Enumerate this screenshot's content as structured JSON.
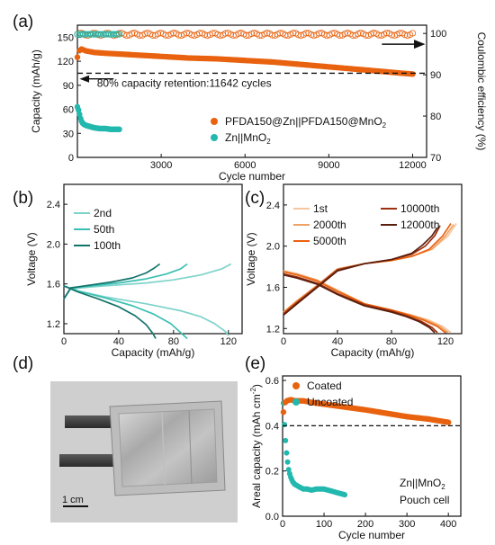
{
  "colors": {
    "orange": "#e8620f",
    "teal": "#22b8ae",
    "axis": "#111111",
    "photo_bg": "#cfcfcf"
  },
  "panels": {
    "a": "(a)",
    "b": "(b)",
    "c": "(c)",
    "d": "(d)",
    "e": "(e)"
  },
  "photo": {
    "scale_label": "1 cm"
  },
  "chart_data": [
    {
      "id": "a",
      "type": "scatter",
      "xlabel": "Cycle number",
      "ylabel": "Capacity (mAh/g)",
      "ylabel_right": "Coulombic efficiency (%)",
      "xlim": [
        0,
        12500
      ],
      "ylim": [
        0,
        165
      ],
      "ylim_right": [
        70,
        102
      ],
      "xticks": [
        3000,
        6000,
        9000,
        12000
      ],
      "yticks": [
        0,
        30,
        60,
        90,
        120,
        150
      ],
      "yticks_right": [
        70,
        80,
        90,
        100
      ],
      "annotation": "80% capacity retention:11642 cycles",
      "reference_line_y": 105,
      "legend": "right",
      "series": [
        {
          "name": "PFDA150@Zn||PFDA150@MnO",
          "name_sub": "2",
          "color": "#e8620f",
          "axis": "left",
          "x": [
            0,
            100,
            300,
            600,
            1000,
            2000,
            3000,
            4000,
            5000,
            6000,
            7000,
            8000,
            9000,
            10000,
            11000,
            11642,
            12000
          ],
          "y": [
            125,
            136,
            133,
            131,
            130,
            128,
            126,
            124,
            123,
            121,
            119,
            116,
            113,
            110,
            107,
            105,
            104
          ]
        },
        {
          "name": "Zn||MnO",
          "name_sub": "2",
          "color": "#22b8ae",
          "axis": "left",
          "x": [
            0,
            50,
            100,
            150,
            200,
            300,
            400,
            500,
            600,
            800,
            1000,
            1200,
            1500
          ],
          "y": [
            63,
            58,
            50,
            45,
            42,
            40,
            39,
            38,
            37,
            36,
            36,
            35,
            35
          ]
        },
        {
          "name": "PFDA150@Zn||PFDA150@MnO2 CE",
          "color": "#e8620f",
          "axis": "right",
          "x": [
            0,
            12000
          ],
          "y": [
            99.8,
            99.8
          ]
        },
        {
          "name": "Zn||MnO2 CE",
          "color": "#22b8ae",
          "axis": "right",
          "x": [
            0,
            1500
          ],
          "y": [
            99.8,
            99.8
          ]
        }
      ]
    },
    {
      "id": "b",
      "type": "line",
      "xlabel": "Capacity (mAh/g)",
      "ylabel": "Voltage (V)",
      "xlim": [
        0,
        130
      ],
      "ylim": [
        1.1,
        2.6
      ],
      "xticks": [
        0,
        40,
        80,
        120
      ],
      "yticks": [
        1.2,
        1.6,
        2.0,
        2.4
      ],
      "legend": "top-left",
      "series": [
        {
          "name": "2nd",
          "color": "#7dd3cb",
          "charge": {
            "x": [
              0,
              5,
              20,
              40,
              60,
              80,
              100,
              115,
              122
            ],
            "y": [
              1.45,
              1.55,
              1.57,
              1.59,
              1.61,
              1.64,
              1.69,
              1.75,
              1.8
            ]
          },
          "discharge": {
            "x": [
              0,
              10,
              30,
              60,
              85,
              100,
              110,
              118,
              120
            ],
            "y": [
              1.58,
              1.53,
              1.47,
              1.4,
              1.33,
              1.27,
              1.2,
              1.12,
              1.08
            ]
          }
        },
        {
          "name": "50th",
          "color": "#3bbfb2",
          "charge": {
            "x": [
              0,
              5,
              20,
              40,
              60,
              75,
              85,
              90
            ],
            "y": [
              1.45,
              1.56,
              1.58,
              1.61,
              1.65,
              1.7,
              1.75,
              1.8
            ]
          },
          "discharge": {
            "x": [
              0,
              10,
              30,
              50,
              65,
              78,
              86,
              90
            ],
            "y": [
              1.58,
              1.53,
              1.46,
              1.38,
              1.3,
              1.2,
              1.1,
              1.05
            ]
          }
        },
        {
          "name": "100th",
          "color": "#12736a",
          "charge": {
            "x": [
              0,
              5,
              20,
              35,
              50,
              60,
              66,
              70
            ],
            "y": [
              1.45,
              1.56,
              1.59,
              1.62,
              1.66,
              1.71,
              1.76,
              1.8
            ]
          },
          "discharge": {
            "x": [
              0,
              10,
              25,
              40,
              52,
              60,
              65,
              67
            ],
            "y": [
              1.58,
              1.52,
              1.45,
              1.37,
              1.28,
              1.19,
              1.1,
              1.05
            ]
          }
        }
      ]
    },
    {
      "id": "c",
      "type": "line",
      "xlabel": "Capacity (mAh/g)",
      "ylabel": "Voltage (V)",
      "xlim": [
        0,
        132
      ],
      "ylim": [
        1.15,
        2.6
      ],
      "xticks": [
        0,
        40,
        80,
        120
      ],
      "yticks": [
        1.2,
        1.6,
        2.0,
        2.4
      ],
      "legend": "top",
      "series": [
        {
          "name": "1st",
          "color": "#f6c79f",
          "charge": {
            "x": [
              0,
              10,
              25,
              40,
              60,
              80,
              95,
              110,
              122,
              128
            ],
            "y": [
              1.36,
              1.47,
              1.62,
              1.78,
              1.83,
              1.86,
              1.9,
              1.97,
              2.1,
              2.22
            ]
          },
          "discharge": {
            "x": [
              0,
              10,
              25,
              40,
              60,
              80,
              95,
              108,
              118,
              124
            ],
            "y": [
              1.76,
              1.73,
              1.67,
              1.57,
              1.44,
              1.38,
              1.33,
              1.28,
              1.22,
              1.16
            ]
          }
        },
        {
          "name": "2000th",
          "color": "#efa164",
          "charge": {
            "x": [
              0,
              10,
              25,
              40,
              60,
              80,
              95,
              110,
              120,
              126
            ],
            "y": [
              1.36,
              1.47,
              1.62,
              1.78,
              1.83,
              1.86,
              1.9,
              1.97,
              2.1,
              2.21
            ]
          },
          "discharge": {
            "x": [
              0,
              10,
              25,
              40,
              60,
              80,
              95,
              106,
              116,
              122
            ],
            "y": [
              1.76,
              1.73,
              1.67,
              1.57,
              1.44,
              1.38,
              1.33,
              1.28,
              1.22,
              1.16
            ]
          }
        },
        {
          "name": "5000th",
          "color": "#e8620f",
          "charge": {
            "x": [
              0,
              10,
              25,
              40,
              60,
              80,
              95,
              108,
              118,
              124
            ],
            "y": [
              1.35,
              1.46,
              1.61,
              1.77,
              1.83,
              1.86,
              1.9,
              1.97,
              2.1,
              2.22
            ]
          },
          "discharge": {
            "x": [
              0,
              10,
              25,
              40,
              60,
              80,
              93,
              104,
              114,
              120
            ],
            "y": [
              1.75,
              1.72,
              1.66,
              1.56,
              1.44,
              1.38,
              1.33,
              1.28,
              1.22,
              1.16
            ]
          }
        },
        {
          "name": "10000th",
          "color": "#9c2f0d",
          "charge": {
            "x": [
              0,
              10,
              25,
              40,
              60,
              80,
              95,
              105,
              112,
              116
            ],
            "y": [
              1.34,
              1.45,
              1.61,
              1.77,
              1.83,
              1.87,
              1.92,
              2.0,
              2.1,
              2.2
            ]
          },
          "discharge": {
            "x": [
              0,
              10,
              25,
              40,
              60,
              80,
              92,
              102,
              110,
              114
            ],
            "y": [
              1.73,
              1.7,
              1.64,
              1.54,
              1.43,
              1.37,
              1.32,
              1.27,
              1.21,
              1.16
            ]
          }
        },
        {
          "name": "12000th",
          "color": "#5a1e0c",
          "charge": {
            "x": [
              0,
              10,
              25,
              40,
              60,
              80,
              95,
              103,
              110,
              114
            ],
            "y": [
              1.33,
              1.44,
              1.6,
              1.76,
              1.83,
              1.87,
              1.93,
              2.01,
              2.1,
              2.18
            ]
          },
          "discharge": {
            "x": [
              0,
              10,
              25,
              40,
              60,
              80,
              90,
              100,
              108,
              112
            ],
            "y": [
              1.72,
              1.69,
              1.63,
              1.53,
              1.42,
              1.36,
              1.32,
              1.27,
              1.21,
              1.16
            ]
          }
        }
      ]
    },
    {
      "id": "e",
      "type": "scatter",
      "xlabel": "Cycle number",
      "ylabel": "Areal capacity (mAh cm",
      "ylabel_sup": "-2",
      "ylabel_close": ")",
      "xlim": [
        0,
        430
      ],
      "ylim": [
        0,
        0.62
      ],
      "xticks": [
        0,
        100,
        200,
        300,
        400
      ],
      "yticks": [
        0.0,
        0.2,
        0.4,
        0.6
      ],
      "reference_line_y": 0.4,
      "annotation_lines": [
        "Zn||MnO",
        "Pouch cell"
      ],
      "annotation_sub": "2",
      "legend": "top-left",
      "series": [
        {
          "name": "Coated",
          "color": "#e8620f",
          "x": [
            2,
            5,
            10,
            20,
            30,
            50,
            80,
            120,
            160,
            200,
            250,
            300,
            350,
            400
          ],
          "y": [
            0.46,
            0.5,
            0.51,
            0.515,
            0.51,
            0.51,
            0.5,
            0.49,
            0.48,
            0.47,
            0.455,
            0.44,
            0.43,
            0.415
          ]
        },
        {
          "name": "Uncoated",
          "color": "#22b8ae",
          "x": [
            2,
            4,
            6,
            8,
            10,
            12,
            15,
            20,
            25,
            30,
            40,
            50,
            60,
            70,
            80,
            90,
            100,
            110,
            120,
            130,
            140,
            150
          ],
          "y": [
            0.5,
            0.42,
            0.36,
            0.31,
            0.27,
            0.24,
            0.2,
            0.17,
            0.15,
            0.14,
            0.13,
            0.12,
            0.12,
            0.115,
            0.12,
            0.12,
            0.12,
            0.115,
            0.11,
            0.105,
            0.1,
            0.095
          ]
        }
      ]
    }
  ]
}
